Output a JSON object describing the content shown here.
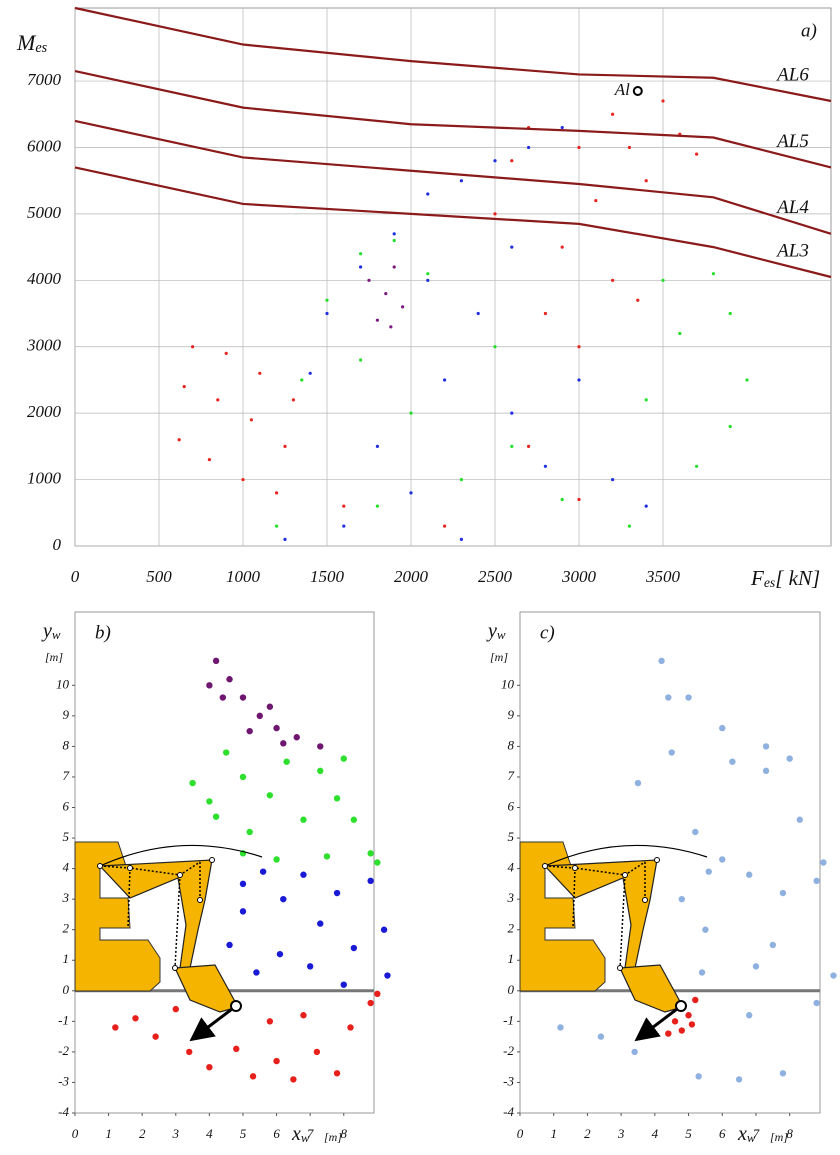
{
  "chart_data": [
    {
      "type": "scatter",
      "panel_label": "a)",
      "grid": true,
      "y_label": {
        "main": "M",
        "sub": "es"
      },
      "x_label": {
        "main": "F",
        "sub": "es",
        "rest": "[ kN]"
      },
      "xlim": [
        0,
        4500
      ],
      "ylim": [
        0,
        8100
      ],
      "xticks": [
        0,
        500,
        1000,
        1500,
        2000,
        2500,
        3000,
        3500
      ],
      "yticks": [
        0,
        1000,
        2000,
        3000,
        4000,
        5000,
        6000,
        7000
      ],
      "series": [
        {
          "color": "#e8241f",
          "x": [
            620,
            650,
            700,
            800,
            850,
            900,
            1000,
            1050,
            1100,
            1200,
            1250,
            1300,
            2500,
            2600,
            2700,
            2800,
            2900,
            3000,
            3000,
            3100,
            3200,
            3200,
            3300,
            3400,
            3500,
            3600,
            3700,
            3350,
            2700,
            3000,
            2200,
            1600
          ],
          "values": [
            1600,
            2400,
            3000,
            1300,
            2200,
            2900,
            1000,
            1900,
            2600,
            800,
            1500,
            2200,
            5000,
            5800,
            6300,
            3500,
            4500,
            6000,
            3000,
            5200,
            6500,
            4000,
            6000,
            5500,
            6700,
            6200,
            5900,
            3700,
            1500,
            700,
            300,
            600
          ]
        },
        {
          "color": "#1f2fe0",
          "x": [
            1250,
            1400,
            1500,
            1700,
            1900,
            2100,
            2300,
            2500,
            2700,
            2900,
            1800,
            2000,
            2200,
            2400,
            2600,
            2800,
            3000,
            3200,
            3400,
            2100,
            2600,
            1600,
            2300
          ],
          "values": [
            100,
            2600,
            3500,
            4200,
            4700,
            5300,
            5500,
            5800,
            6000,
            6300,
            1500,
            800,
            2500,
            3500,
            2000,
            1200,
            2500,
            1000,
            600,
            4000,
            4500,
            300,
            100
          ]
        },
        {
          "color": "#22e02a",
          "x": [
            1200,
            1350,
            1500,
            1700,
            1900,
            2100,
            1700,
            2000,
            2300,
            2600,
            2900,
            3300,
            3400,
            3600,
            3800,
            3900,
            4000,
            3900,
            3700,
            3500,
            1800,
            2500
          ],
          "values": [
            300,
            2500,
            3700,
            4400,
            4600,
            4100,
            2800,
            2000,
            1000,
            1500,
            700,
            300,
            2200,
            3200,
            4100,
            3500,
            2500,
            1800,
            1200,
            4000,
            600,
            3000
          ]
        },
        {
          "color": "#7a1a7e",
          "x": [
            1800,
            1850,
            1900,
            1950,
            1750,
            1880
          ],
          "values": [
            3400,
            3800,
            4200,
            3600,
            4000,
            3300
          ]
        }
      ],
      "curves": [
        {
          "name": "AL6",
          "color": "#8b1a1a",
          "x": [
            0,
            1000,
            2000,
            3000,
            3800,
            4500
          ],
          "values": [
            8100,
            7550,
            7300,
            7100,
            7050,
            6700
          ]
        },
        {
          "name": "AL5",
          "color": "#8b1a1a",
          "x": [
            0,
            1000,
            2000,
            3000,
            3800,
            4500
          ],
          "values": [
            7150,
            6600,
            6350,
            6250,
            6150,
            5700
          ]
        },
        {
          "name": "AL4",
          "color": "#8b1a1a",
          "x": [
            0,
            1000,
            2000,
            3000,
            3800,
            4500
          ],
          "values": [
            6400,
            5850,
            5650,
            5450,
            5250,
            4700
          ]
        },
        {
          "name": "AL3",
          "color": "#8b1a1a",
          "x": [
            0,
            1000,
            2000,
            3000,
            3800,
            4500
          ],
          "values": [
            5700,
            5150,
            5000,
            4850,
            4500,
            4050
          ]
        }
      ],
      "annotations": [
        {
          "text": "Al",
          "x": 3350,
          "y": 6850
        }
      ]
    },
    {
      "type": "scatter",
      "panel_label": "b)",
      "grid": false,
      "zero_line": true,
      "y_label": {
        "main": "y",
        "sub": "w",
        "unit": "[m]"
      },
      "x_label": {
        "main": "x",
        "sub": "w",
        "unit": "[m]"
      },
      "xlim": [
        0,
        8.9
      ],
      "ylim": [
        -4,
        12.4
      ],
      "xticks": [
        0,
        1,
        2,
        3,
        4,
        5,
        6,
        7,
        8
      ],
      "yticks": [
        -4,
        -3,
        -2,
        -1,
        0,
        1,
        2,
        3,
        4,
        5,
        6,
        7,
        8,
        9,
        10
      ],
      "series": [
        {
          "color": "#6e1670",
          "x": [
            4.2,
            4.6,
            5.0,
            5.5,
            6.0,
            6.6,
            7.3,
            4.4,
            5.2,
            6.2,
            4.0,
            5.8
          ],
          "values": [
            10.8,
            10.2,
            9.6,
            9.0,
            8.6,
            8.3,
            8.0,
            9.6,
            8.5,
            8.1,
            10.0,
            9.3
          ]
        },
        {
          "color": "#2ee02e",
          "x": [
            3.5,
            4.0,
            4.5,
            5.0,
            5.2,
            5.8,
            6.3,
            6.8,
            7.3,
            7.8,
            8.3,
            8.8,
            9.0,
            7.5,
            6.0,
            5.0,
            8.0,
            4.2
          ],
          "values": [
            6.8,
            6.2,
            7.8,
            7.0,
            5.2,
            6.4,
            7.5,
            5.6,
            7.2,
            6.3,
            5.6,
            4.5,
            4.2,
            4.4,
            4.3,
            4.5,
            7.6,
            5.7
          ]
        },
        {
          "color": "#1a1ad6",
          "x": [
            5.0,
            5.6,
            6.2,
            6.8,
            7.3,
            7.8,
            8.3,
            8.8,
            9.2,
            9.3,
            8.0,
            7.0,
            6.1,
            5.4,
            4.6,
            5.0
          ],
          "values": [
            3.5,
            3.9,
            3.0,
            3.8,
            2.2,
            3.2,
            1.4,
            3.6,
            2.0,
            0.5,
            0.2,
            0.8,
            1.2,
            0.6,
            1.5,
            2.6
          ]
        },
        {
          "color": "#e8201c",
          "x": [
            1.2,
            1.8,
            2.4,
            3.0,
            3.4,
            4.0,
            4.8,
            5.3,
            6.0,
            6.5,
            7.2,
            7.8,
            8.2,
            8.8,
            9.0,
            6.8,
            5.8,
            3.8
          ],
          "values": [
            -1.2,
            -0.9,
            -1.5,
            -0.6,
            -2.0,
            -2.5,
            -1.9,
            -2.8,
            -2.3,
            -2.9,
            -2.0,
            -2.7,
            -1.2,
            -0.4,
            -0.1,
            -0.8,
            -1.0,
            -1.2
          ]
        }
      ]
    },
    {
      "type": "scatter",
      "panel_label": "c)",
      "grid": false,
      "zero_line": true,
      "y_label": {
        "main": "y",
        "sub": "w",
        "unit": "[m]"
      },
      "x_label": {
        "main": "x",
        "sub": "w",
        "unit": "[m]"
      },
      "xlim": [
        0,
        8.9
      ],
      "ylim": [
        -4,
        12.4
      ],
      "xticks": [
        0,
        1,
        2,
        3,
        4,
        5,
        6,
        7,
        8
      ],
      "yticks": [
        -4,
        -3,
        -2,
        -1,
        0,
        1,
        2,
        3,
        4,
        5,
        6,
        7,
        8,
        9,
        10
      ],
      "series": [
        {
          "color": "#8fb1e0",
          "x": [
            4.2,
            5.0,
            6.0,
            7.3,
            4.4,
            3.5,
            4.5,
            5.2,
            6.3,
            7.3,
            8.3,
            9.0,
            6.0,
            8.0,
            5.6,
            6.8,
            7.8,
            8.8,
            9.3,
            7.0,
            5.4,
            1.2,
            2.4,
            3.4,
            5.3,
            6.5,
            7.8,
            8.8,
            6.8,
            5.5,
            4.8,
            7.5
          ],
          "values": [
            10.8,
            9.6,
            8.6,
            8.0,
            9.6,
            6.8,
            7.8,
            5.2,
            7.5,
            7.2,
            5.6,
            4.2,
            4.3,
            7.6,
            3.9,
            3.8,
            3.2,
            3.6,
            0.5,
            0.8,
            0.6,
            -1.2,
            -1.5,
            -2.0,
            -2.8,
            -2.9,
            -2.7,
            -0.4,
            -0.8,
            2.0,
            3.0,
            1.5
          ]
        },
        {
          "color": "#e8201c",
          "x": [
            4.6,
            4.8,
            5.0,
            5.2,
            4.4,
            5.1
          ],
          "values": [
            -1.0,
            -1.3,
            -0.8,
            -0.3,
            -1.4,
            -1.1
          ]
        }
      ]
    }
  ]
}
